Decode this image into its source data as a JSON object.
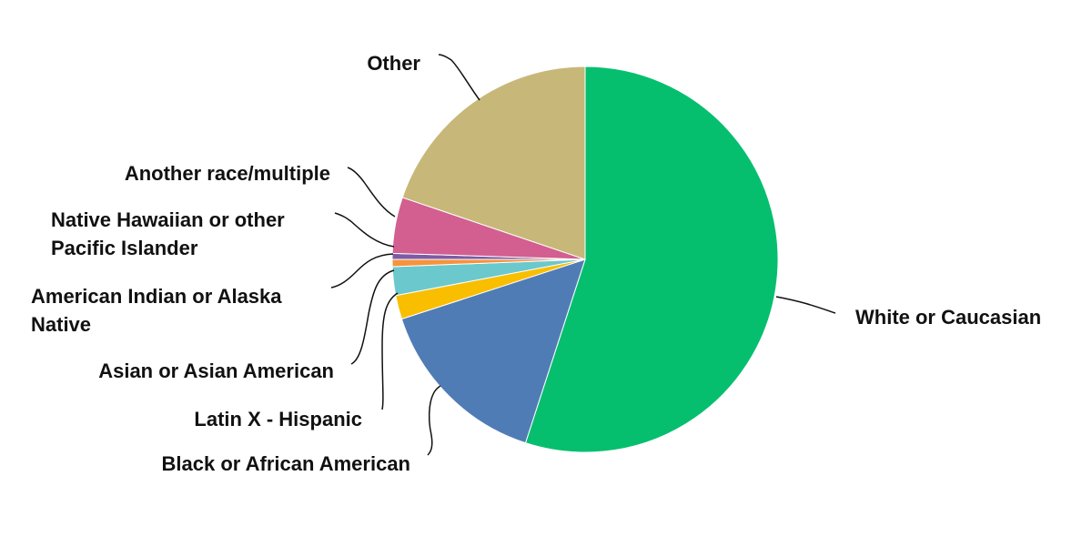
{
  "chart_data": {
    "type": "pie",
    "title": "",
    "start_angle_deg": 0,
    "direction": "clockwise",
    "slices": [
      {
        "label": "White or Caucasian",
        "value": 55.0,
        "color": "#05BF6F"
      },
      {
        "label": "Black or African American",
        "value": 15.0,
        "color": "#507CB6"
      },
      {
        "label": "Latin X - Hispanic",
        "value": 2.0,
        "color": "#F9BE00"
      },
      {
        "label": "Asian or Asian American",
        "value": 2.4,
        "color": "#6BC8CD"
      },
      {
        "label": "American Indian or Alaska Native",
        "value": 0.6,
        "color": "#F4943D"
      },
      {
        "label": "Native Hawaiian or other Pacific Islander",
        "value": 0.5,
        "color": "#7D5BA6"
      },
      {
        "label": "Another race/multiple",
        "value": 4.7,
        "color": "#D25F90"
      },
      {
        "label": "Other",
        "value": 19.8,
        "color": "#C7B879"
      }
    ]
  }
}
